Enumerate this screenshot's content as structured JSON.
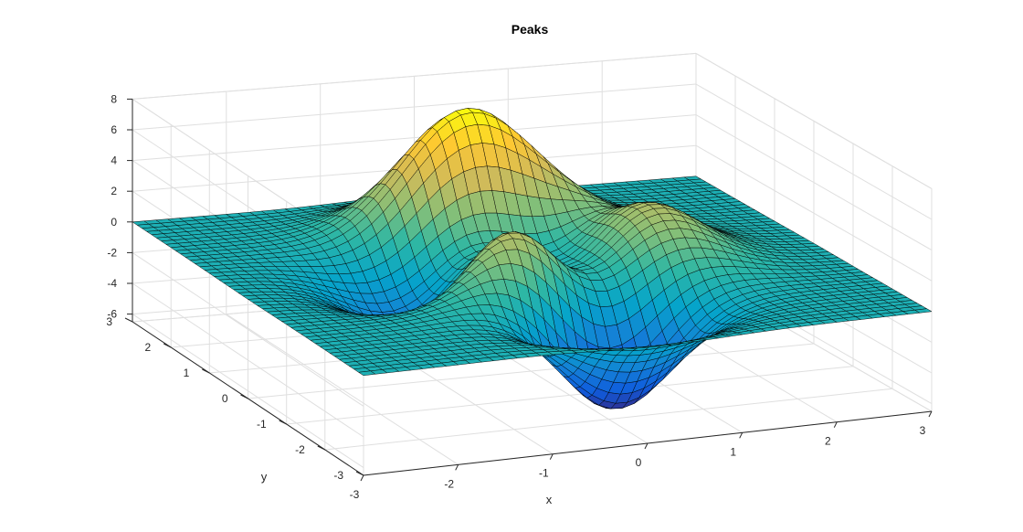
{
  "chart_data": {
    "type": "surface",
    "title": "Peaks",
    "xlabel": "x",
    "ylabel": "y",
    "zlabel": "",
    "function": "peaks",
    "xlim": [
      -3,
      3
    ],
    "ylim": [
      -3,
      3
    ],
    "zlim": [
      -6.5,
      8
    ],
    "x_ticks": [
      -3,
      -2,
      -1,
      0,
      1,
      2,
      3
    ],
    "y_ticks": [
      -3,
      -2,
      -1,
      0,
      1,
      2,
      3
    ],
    "z_ticks": [
      -6,
      -4,
      -2,
      0,
      2,
      4,
      6,
      8
    ],
    "grid_points": 49,
    "colormap": "parula",
    "colormap_colors": [
      "#352a87",
      "#0f5cdd",
      "#1481d6",
      "#06a4ca",
      "#2eb7a4",
      "#87bf77",
      "#d1bb59",
      "#fec832",
      "#f9fb0e"
    ],
    "edge_color": "#000000",
    "grid": true,
    "z_max": 8.1,
    "z_min": -6.55
  }
}
